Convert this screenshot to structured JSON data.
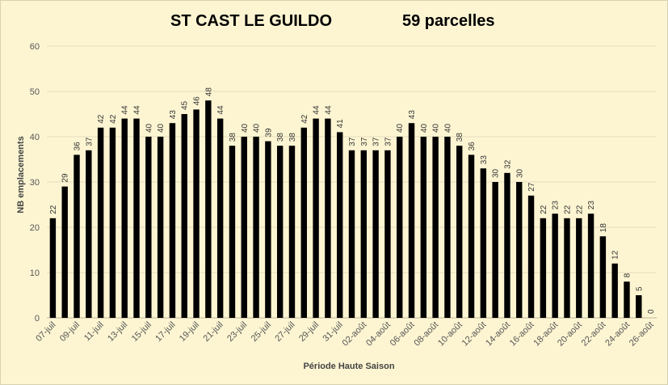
{
  "titles": {
    "left": "ST CAST LE GUILDO",
    "right": "59 parcelles"
  },
  "chart_data": {
    "type": "bar",
    "title": "ST CAST LE GUILDO",
    "subtitle": "59 parcelles",
    "xlabel": "Période Haute Saison",
    "ylabel": "NB emplacements",
    "ylim": [
      0,
      60
    ],
    "yticks": [
      0,
      10,
      20,
      30,
      40,
      50,
      60
    ],
    "grid": true,
    "bar_color": "#000000",
    "categories": [
      "07-juil",
      "08-juil",
      "09-juil",
      "10-juil",
      "11-juil",
      "12-juil",
      "13-juil",
      "14-juil",
      "15-juil",
      "16-juil",
      "17-juil",
      "18-juil",
      "19-juil",
      "20-juil",
      "21-juil",
      "22-juil",
      "23-juil",
      "24-juil",
      "25-juil",
      "26-juil",
      "27-juil",
      "28-juil",
      "29-juil",
      "30-juil",
      "31-juil",
      "01-août",
      "02-août",
      "03-août",
      "04-août",
      "05-août",
      "06-août",
      "07-août",
      "08-août",
      "09-août",
      "10-août",
      "11-août",
      "12-août",
      "13-août",
      "14-août",
      "15-août",
      "16-août",
      "17-août",
      "18-août",
      "19-août",
      "20-août",
      "21-août",
      "22-août",
      "23-août",
      "24-août",
      "25-août",
      "26-août"
    ],
    "tick_labels": [
      "07-juil",
      "09-juil",
      "11-juil",
      "13-juil",
      "15-juil",
      "17-juil",
      "19-juil",
      "21-juil",
      "23-juil",
      "25-juil",
      "27-juil",
      "29-juil",
      "31-juil",
      "02-août",
      "04-août",
      "06-août",
      "08-août",
      "10-août",
      "12-août",
      "14-août",
      "16-août",
      "18-août",
      "20-août",
      "22-août",
      "24-août",
      "26-août"
    ],
    "values": [
      22,
      29,
      36,
      37,
      42,
      42,
      44,
      44,
      40,
      40,
      43,
      45,
      46,
      48,
      44,
      38,
      40,
      40,
      39,
      38,
      38,
      42,
      44,
      44,
      41,
      37,
      37,
      37,
      37,
      40,
      43,
      40,
      40,
      40,
      38,
      36,
      33,
      30,
      32,
      30,
      27,
      22,
      23,
      22,
      22,
      23,
      18,
      12,
      8,
      5,
      0
    ]
  }
}
